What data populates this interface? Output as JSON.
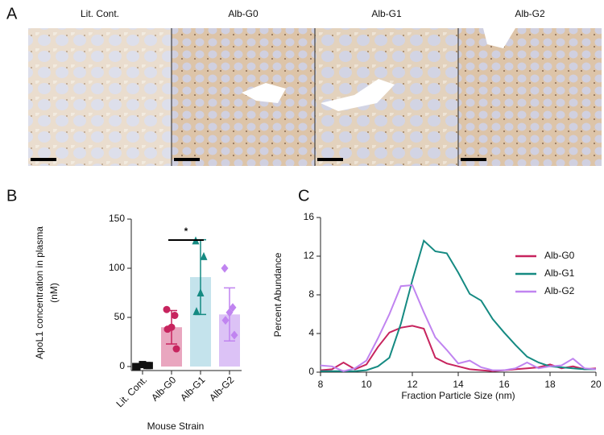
{
  "figure": {
    "panel_labels": [
      "A",
      "B",
      "C"
    ],
    "image_titles": [
      "Lit. Cont.",
      "Alb-G0",
      "Alb-G1",
      "Alb-G2"
    ]
  },
  "chart_data": [
    {
      "type": "bar",
      "ylabel": [
        "ApoL1 concentration in plasma",
        "(nM)"
      ],
      "xlabel": "Mouse Strain",
      "categories": [
        "Lit. Cont.",
        "Alb-G0",
        "Alb-G1",
        "Alb-G2"
      ],
      "values": [
        1,
        40,
        91,
        53
      ],
      "errors": [
        1,
        17,
        38,
        27
      ],
      "points": [
        [
          0,
          1,
          2,
          0,
          1
        ],
        [
          58,
          52,
          40,
          38,
          18
        ],
        [
          128,
          112,
          75,
          56
        ],
        [
          100,
          60,
          55,
          47,
          32
        ]
      ],
      "markers": [
        "square",
        "circle",
        "triangle",
        "diamond"
      ],
      "colors": [
        "#111111",
        "#c7245e",
        "#158a82",
        "#c084f0"
      ],
      "bar_colors": [
        "#d9d9d9",
        "#e9a6bf",
        "#c4e3ec",
        "#dcc2f6"
      ],
      "annotation": "*",
      "ylim": [
        0,
        150
      ],
      "yticks": [
        0,
        50,
        100,
        150
      ]
    },
    {
      "type": "line",
      "xlabel": "Fraction Particle Size (nm)",
      "ylabel": "Percent Abundance",
      "x": [
        8,
        8.5,
        9,
        9.5,
        10,
        10.5,
        11,
        11.5,
        12,
        12.5,
        13,
        13.5,
        14,
        14.5,
        15,
        15.5,
        16,
        16.5,
        17,
        17.5,
        18,
        18.5,
        19,
        19.5,
        20
      ],
      "series": [
        {
          "name": "Alb-G0",
          "color": "#c7245e",
          "values": [
            0.2,
            0.3,
            1.0,
            0.3,
            0.8,
            2.6,
            4.1,
            4.6,
            4.8,
            4.5,
            1.5,
            0.9,
            0.6,
            0.3,
            0.2,
            0.1,
            0.2,
            0.3,
            0.4,
            0.5,
            0.8,
            0.4,
            0.6,
            0.3,
            0.4
          ]
        },
        {
          "name": "Alb-G1",
          "color": "#158a82",
          "values": [
            0.1,
            0.1,
            0.1,
            0.1,
            0.2,
            0.6,
            1.5,
            5.0,
            9.5,
            13.6,
            12.5,
            12.3,
            10.3,
            8.1,
            7.4,
            5.5,
            4.1,
            2.8,
            1.6,
            1.0,
            0.6,
            0.5,
            0.4,
            0.3,
            0.3
          ]
        },
        {
          "name": "Alb-G2",
          "color": "#c084f0",
          "values": [
            0.7,
            0.6,
            0.1,
            0.4,
            1.2,
            3.5,
            6.0,
            8.9,
            9.0,
            6.2,
            3.6,
            2.3,
            0.9,
            1.2,
            0.5,
            0.2,
            0.2,
            0.4,
            1.0,
            0.4,
            0.6,
            0.7,
            1.4,
            0.4,
            0.3
          ]
        }
      ],
      "xlim": [
        8,
        20
      ],
      "xticks": [
        8,
        10,
        12,
        14,
        16,
        18,
        20
      ],
      "ylim": [
        0,
        16
      ],
      "yticks": [
        0,
        4,
        8,
        12,
        16
      ],
      "legend": "upper right"
    }
  ]
}
